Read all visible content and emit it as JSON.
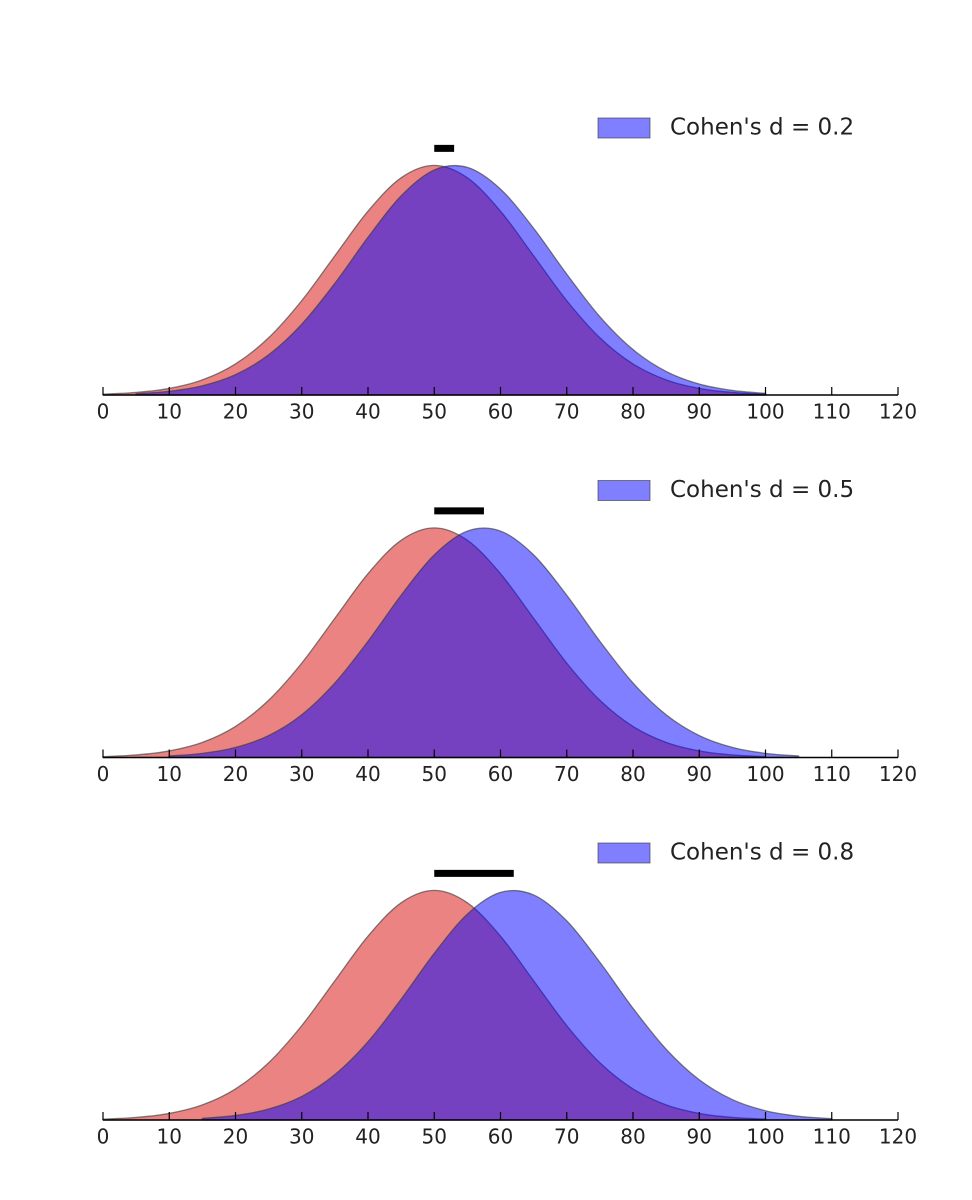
{
  "chart_data": [
    {
      "type": "area",
      "xlim": [
        0,
        120
      ],
      "xticks": [
        0,
        10,
        20,
        30,
        40,
        50,
        60,
        70,
        80,
        90,
        100,
        110,
        120
      ],
      "ylim": [
        0,
        0.03
      ],
      "legend": "upper right",
      "x": [
        0,
        5,
        10,
        15,
        20,
        25,
        30,
        35,
        40,
        45,
        50,
        55,
        60,
        65,
        70,
        75,
        80,
        85,
        90,
        95,
        100,
        105,
        110
      ],
      "series": [
        {
          "color": "#e03030",
          "values": [
            0.000103,
            0.000295,
            0.00076,
            0.001748,
            0.003599,
            0.006633,
            0.010934,
            0.016131,
            0.021296,
            0.02516,
            0.026596,
            0.02516,
            0.021296,
            0.016131,
            0.010934,
            0.006633,
            0.003599,
            0.001748,
            0.00076,
            0.000295,
            0.000103,
            null,
            null
          ]
        },
        {
          "name": "Cohen's d = 0.2",
          "color": "#0000ff",
          "values": [
            null,
            0.000159,
            0.000437,
            0.001074,
            0.002365,
            0.00466,
            0.008207,
            0.012946,
            0.018269,
            0.023072,
            0.026069,
            0.026361,
            0.023851,
            0.019313,
            0.013998,
            0.00907,
            0.005263,
            0.002731,
            0.001269,
            0.000528,
            0.000196,
            null,
            null
          ]
        }
      ],
      "marker_bar": {
        "x": [
          50,
          53
        ],
        "color": "#000000"
      }
    },
    {
      "type": "area",
      "xlim": [
        0,
        120
      ],
      "xticks": [
        0,
        10,
        20,
        30,
        40,
        50,
        60,
        70,
        80,
        90,
        100,
        110,
        120
      ],
      "ylim": [
        0,
        0.03
      ],
      "legend": "upper right",
      "x": [
        0,
        5,
        10,
        15,
        20,
        25,
        30,
        35,
        40,
        45,
        50,
        55,
        60,
        65,
        70,
        75,
        80,
        85,
        90,
        95,
        100,
        105,
        110
      ],
      "series": [
        {
          "color": "#e03030",
          "values": [
            0.000103,
            0.000295,
            0.00076,
            0.001748,
            0.003599,
            0.006633,
            0.010934,
            0.016131,
            0.021296,
            0.02516,
            0.026596,
            0.02516,
            0.021296,
            0.016131,
            0.010934,
            0.006633,
            0.003599,
            0.001748,
            0.00076,
            0.000295,
            0.000103,
            null,
            null
          ]
        },
        {
          "name": "Cohen's d = 0.5",
          "color": "#0000ff",
          "values": [
            null,
            null,
            0.000177,
            0.00048,
            0.001169,
            0.002544,
            0.004953,
            0.008635,
            0.013466,
            0.018796,
            0.023471,
            0.026229,
            0.026229,
            0.023471,
            0.018796,
            0.013466,
            0.008635,
            0.004953,
            0.002544,
            0.001169,
            0.00048,
            0.000177,
            null
          ]
        }
      ],
      "marker_bar": {
        "x": [
          50,
          57.5
        ],
        "color": "#000000"
      }
    },
    {
      "type": "area",
      "xlim": [
        0,
        120
      ],
      "xticks": [
        0,
        10,
        20,
        30,
        40,
        50,
        60,
        70,
        80,
        90,
        100,
        110,
        120
      ],
      "ylim": [
        0,
        0.03
      ],
      "legend": "upper right",
      "x": [
        0,
        5,
        10,
        15,
        20,
        25,
        30,
        35,
        40,
        45,
        50,
        55,
        60,
        65,
        70,
        75,
        80,
        85,
        90,
        95,
        100,
        105,
        110
      ],
      "series": [
        {
          "color": "#e03030",
          "values": [
            0.000103,
            0.000295,
            0.00076,
            0.001748,
            0.003599,
            0.006633,
            0.010934,
            0.016131,
            0.021296,
            0.02516,
            0.026596,
            0.02516,
            0.021296,
            0.016131,
            0.010934,
            0.006633,
            0.003599,
            0.001748,
            0.00076,
            0.000295,
            0.000103,
            null,
            null
          ]
        },
        {
          "name": "Cohen's d = 0.8",
          "color": "#0000ff",
          "values": [
            null,
            null,
            null,
            0.000196,
            0.000528,
            0.001269,
            0.002731,
            0.005263,
            0.00907,
            0.013998,
            0.019313,
            0.023851,
            0.026361,
            0.026069,
            0.023072,
            0.018269,
            0.012946,
            0.008207,
            0.00466,
            0.002365,
            0.001074,
            0.000437,
            0.000159
          ]
        }
      ],
      "marker_bar": {
        "x": [
          50,
          62
        ],
        "color": "#000000"
      }
    }
  ]
}
